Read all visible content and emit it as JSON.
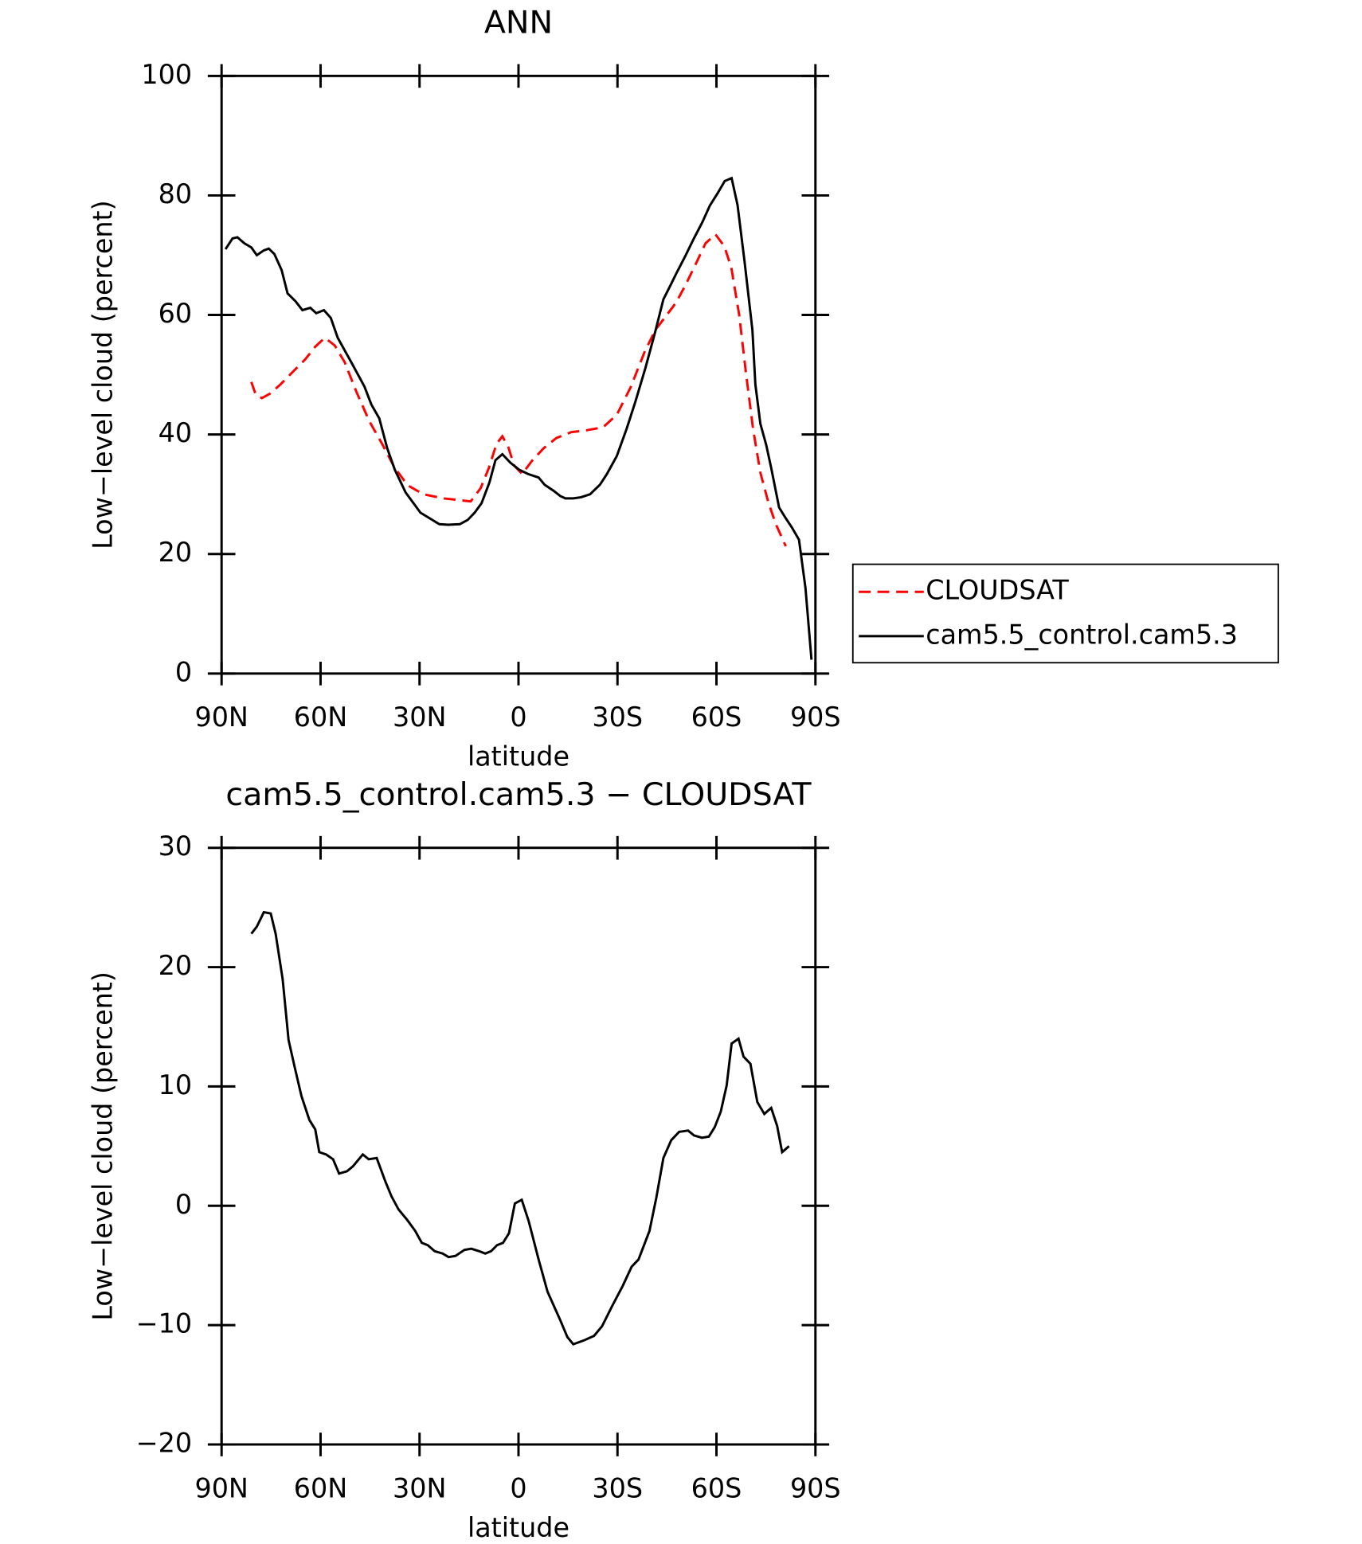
{
  "chart_data": [
    {
      "type": "line",
      "title": "ANN",
      "xlabel": "latitude",
      "ylabel": "Low−level cloud (percent)",
      "xlim": [
        90,
        -90
      ],
      "xticks": [
        {
          "value": 90,
          "label": "90N"
        },
        {
          "value": 60,
          "label": "60N"
        },
        {
          "value": 30,
          "label": "30N"
        },
        0,
        {
          "value": -30,
          "label": "30S"
        },
        {
          "value": -60,
          "label": "60S"
        },
        {
          "value": -90,
          "label": "90S"
        }
      ],
      "ylim": [
        0,
        100
      ],
      "yticks": [
        0,
        20,
        40,
        60,
        80,
        100
      ],
      "legend": "outside-right",
      "series": [
        {
          "name": "CLOUDSAT",
          "color": "#ff0000",
          "dash": true,
          "x": [
            81,
            79.6,
            77.8,
            75.4,
            72.1,
            68.2,
            64.6,
            61.6,
            58.7,
            55.7,
            52.7,
            49.1,
            45.2,
            41.3,
            37.7,
            33.6,
            28.8,
            22.8,
            17.5,
            14.5,
            11.5,
            9,
            6.7,
            4.9,
            3.1,
            1.3,
            -1.1,
            -4.1,
            -7.6,
            -11.5,
            -16,
            -20.5,
            -25.6,
            -29.8,
            -34,
            -38.2,
            -41.5,
            -44.8,
            -47.8,
            -50.8,
            -53.7,
            -56.7,
            -59.7,
            -62.4,
            -64.5,
            -66.9,
            -69,
            -71.1,
            -73.3,
            -75.7,
            -78,
            -81
          ],
          "values": [
            48.8,
            46.6,
            46.1,
            46.8,
            48.4,
            50.6,
            52.6,
            54.7,
            56.2,
            54.9,
            52.1,
            47.1,
            42.2,
            38.4,
            34.6,
            31.5,
            30,
            29.3,
            29,
            28.8,
            31,
            34.4,
            38.4,
            39.7,
            37.9,
            34.8,
            33.4,
            35.6,
            37.7,
            39.4,
            40.4,
            40.7,
            41.2,
            43.3,
            47.9,
            53.8,
            57.5,
            59.9,
            62.1,
            65.2,
            68.5,
            72,
            73.5,
            71.5,
            67.9,
            60,
            50.1,
            40.9,
            33.6,
            28.7,
            25,
            21.3
          ]
        },
        {
          "name": "cam5.5_control.cam5.3",
          "color": "#000000",
          "dash": false,
          "x": [
            88.8,
            86.7,
            85.2,
            83.1,
            81,
            79.3,
            77.2,
            75.7,
            74,
            71.8,
            70,
            67.6,
            65.5,
            63.1,
            61.3,
            59,
            56.9,
            54.8,
            50.3,
            46.7,
            44.6,
            42.2,
            39.8,
            37.5,
            34.2,
            29.7,
            26.7,
            24,
            21.3,
            17.8,
            15.4,
            13.3,
            11.2,
            8.8,
            7,
            4.9,
            2.5,
            -0.2,
            -2.9,
            -6.1,
            -7.9,
            -10.6,
            -12.7,
            -14.2,
            -16.6,
            -19,
            -21.7,
            -24.7,
            -26.8,
            -29.8,
            -32.8,
            -35.5,
            -38.5,
            -41.5,
            -43.9,
            -46,
            -47.8,
            -50.5,
            -53,
            -55.7,
            -58,
            -60.4,
            -62.5,
            -64.6,
            -66.4,
            -68.5,
            -70.9,
            -71.8,
            -73.3,
            -75.1,
            -76.6,
            -79,
            -81.1,
            -82.8,
            -85,
            -87,
            -88.8
          ],
          "values": [
            71,
            72.8,
            73,
            72,
            71.3,
            70,
            70.8,
            71.1,
            70.2,
            67.5,
            63.6,
            62.3,
            60.8,
            61.2,
            60.3,
            60.8,
            59.5,
            56.2,
            51.7,
            48,
            45,
            42.7,
            37.7,
            34.1,
            30.3,
            26.9,
            25.9,
            25,
            24.9,
            25,
            25.7,
            26.9,
            28.5,
            32,
            35.7,
            36.7,
            35.3,
            34.1,
            33.4,
            32.8,
            31.6,
            30.6,
            29.7,
            29.3,
            29.3,
            29.5,
            30,
            31.6,
            33.4,
            36.4,
            41,
            45.6,
            51.2,
            57.3,
            62.6,
            64.9,
            66.9,
            69.8,
            72.6,
            75.5,
            78.3,
            80.4,
            82.4,
            82.9,
            78.4,
            69,
            57.5,
            48.4,
            41.8,
            38.2,
            34.4,
            27.8,
            25.9,
            24.5,
            22.4,
            14.3,
            2.3
          ]
        }
      ]
    },
    {
      "type": "line",
      "title": "cam5.5_control.cam5.3 − CLOUDSAT",
      "xlabel": "latitude",
      "ylabel": "Low−level cloud (percent)",
      "xlim": [
        90,
        -90
      ],
      "xticks": [
        {
          "value": 90,
          "label": "90N"
        },
        {
          "value": 60,
          "label": "60N"
        },
        {
          "value": 30,
          "label": "30N"
        },
        0,
        {
          "value": -30,
          "label": "30S"
        },
        {
          "value": -60,
          "label": "60S"
        },
        {
          "value": -90,
          "label": "90S"
        }
      ],
      "ylim": [
        -20,
        30
      ],
      "yticks": [
        {
          "value": -20,
          "label": "−20"
        },
        {
          "value": -10,
          "label": "−10"
        },
        0,
        10,
        20,
        30
      ],
      "series": [
        {
          "color": "#000000",
          "dash": false,
          "x": [
            81,
            79.3,
            77.2,
            75.1,
            73.6,
            71.5,
            69.7,
            67.9,
            65.8,
            63.4,
            61.6,
            60.4,
            58.3,
            56.2,
            54.4,
            52,
            50.2,
            47.2,
            45.4,
            43,
            40.3,
            38.5,
            36.4,
            33.7,
            31.3,
            29.3,
            27.5,
            25.4,
            23,
            21.2,
            19.1,
            16.4,
            14.3,
            11.9,
            10.1,
            8.3,
            6.5,
            4.7,
            2.9,
            1.1,
            -1,
            -3.1,
            -6.1,
            -8.8,
            -12.7,
            -14.8,
            -16.6,
            -19.6,
            -22.9,
            -25.3,
            -28.4,
            -31.6,
            -34.3,
            -36.4,
            -39.7,
            -41.8,
            -43.9,
            -46.3,
            -48.7,
            -51.4,
            -53.2,
            -55.6,
            -57.7,
            -59.5,
            -61.3,
            -63.1,
            -64.6,
            -66.7,
            -68.2,
            -70.3,
            -72.4,
            -74.5,
            -76.6,
            -78.4,
            -79.9,
            -82
          ],
          "values": [
            22.8,
            23.4,
            24.6,
            24.5,
            22.8,
            19,
            13.9,
            11.7,
            9.2,
            7.2,
            6.4,
            4.5,
            4.3,
            3.9,
            2.7,
            2.9,
            3.3,
            4.3,
            3.9,
            4,
            2,
            0.8,
            -0.3,
            -1.2,
            -2.1,
            -3.1,
            -3.3,
            -3.8,
            -4,
            -4.3,
            -4.2,
            -3.7,
            -3.6,
            -3.8,
            -4,
            -3.8,
            -3.3,
            -3.1,
            -2.3,
            0.2,
            0.5,
            -1.3,
            -4.5,
            -7.2,
            -9.6,
            -11,
            -11.6,
            -11.3,
            -10.9,
            -10.1,
            -8.4,
            -6.7,
            -5.1,
            -4.5,
            -2.1,
            0.7,
            4,
            5.5,
            6.2,
            6.3,
            5.9,
            5.7,
            5.8,
            6.6,
            7.9,
            10.1,
            13.6,
            14,
            12.5,
            11.9,
            8.7,
            7.7,
            8.2,
            6.7,
            4.5,
            5
          ]
        }
      ]
    }
  ]
}
